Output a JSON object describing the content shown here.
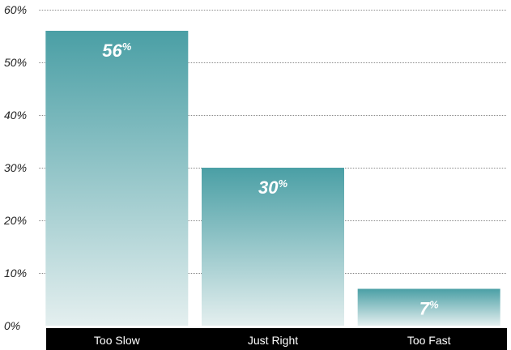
{
  "chart_data": {
    "type": "bar",
    "categories": [
      "Too Slow",
      "Just Right",
      "Too Fast"
    ],
    "values": [
      56,
      30,
      7
    ],
    "value_labels": [
      "56",
      "30",
      "7"
    ],
    "value_suffix": "%",
    "yticks": [
      "0%",
      "10%",
      "20%",
      "30%",
      "40%",
      "50%",
      "60%"
    ],
    "ylim": [
      0,
      60
    ],
    "grid": true,
    "title": "",
    "xlabel": "",
    "ylabel": ""
  },
  "colors": {
    "bar_top": "#4a9fa5",
    "bar_bottom": "#e4efef",
    "category_band": "#000000",
    "gridline": "#8a8a8a"
  }
}
